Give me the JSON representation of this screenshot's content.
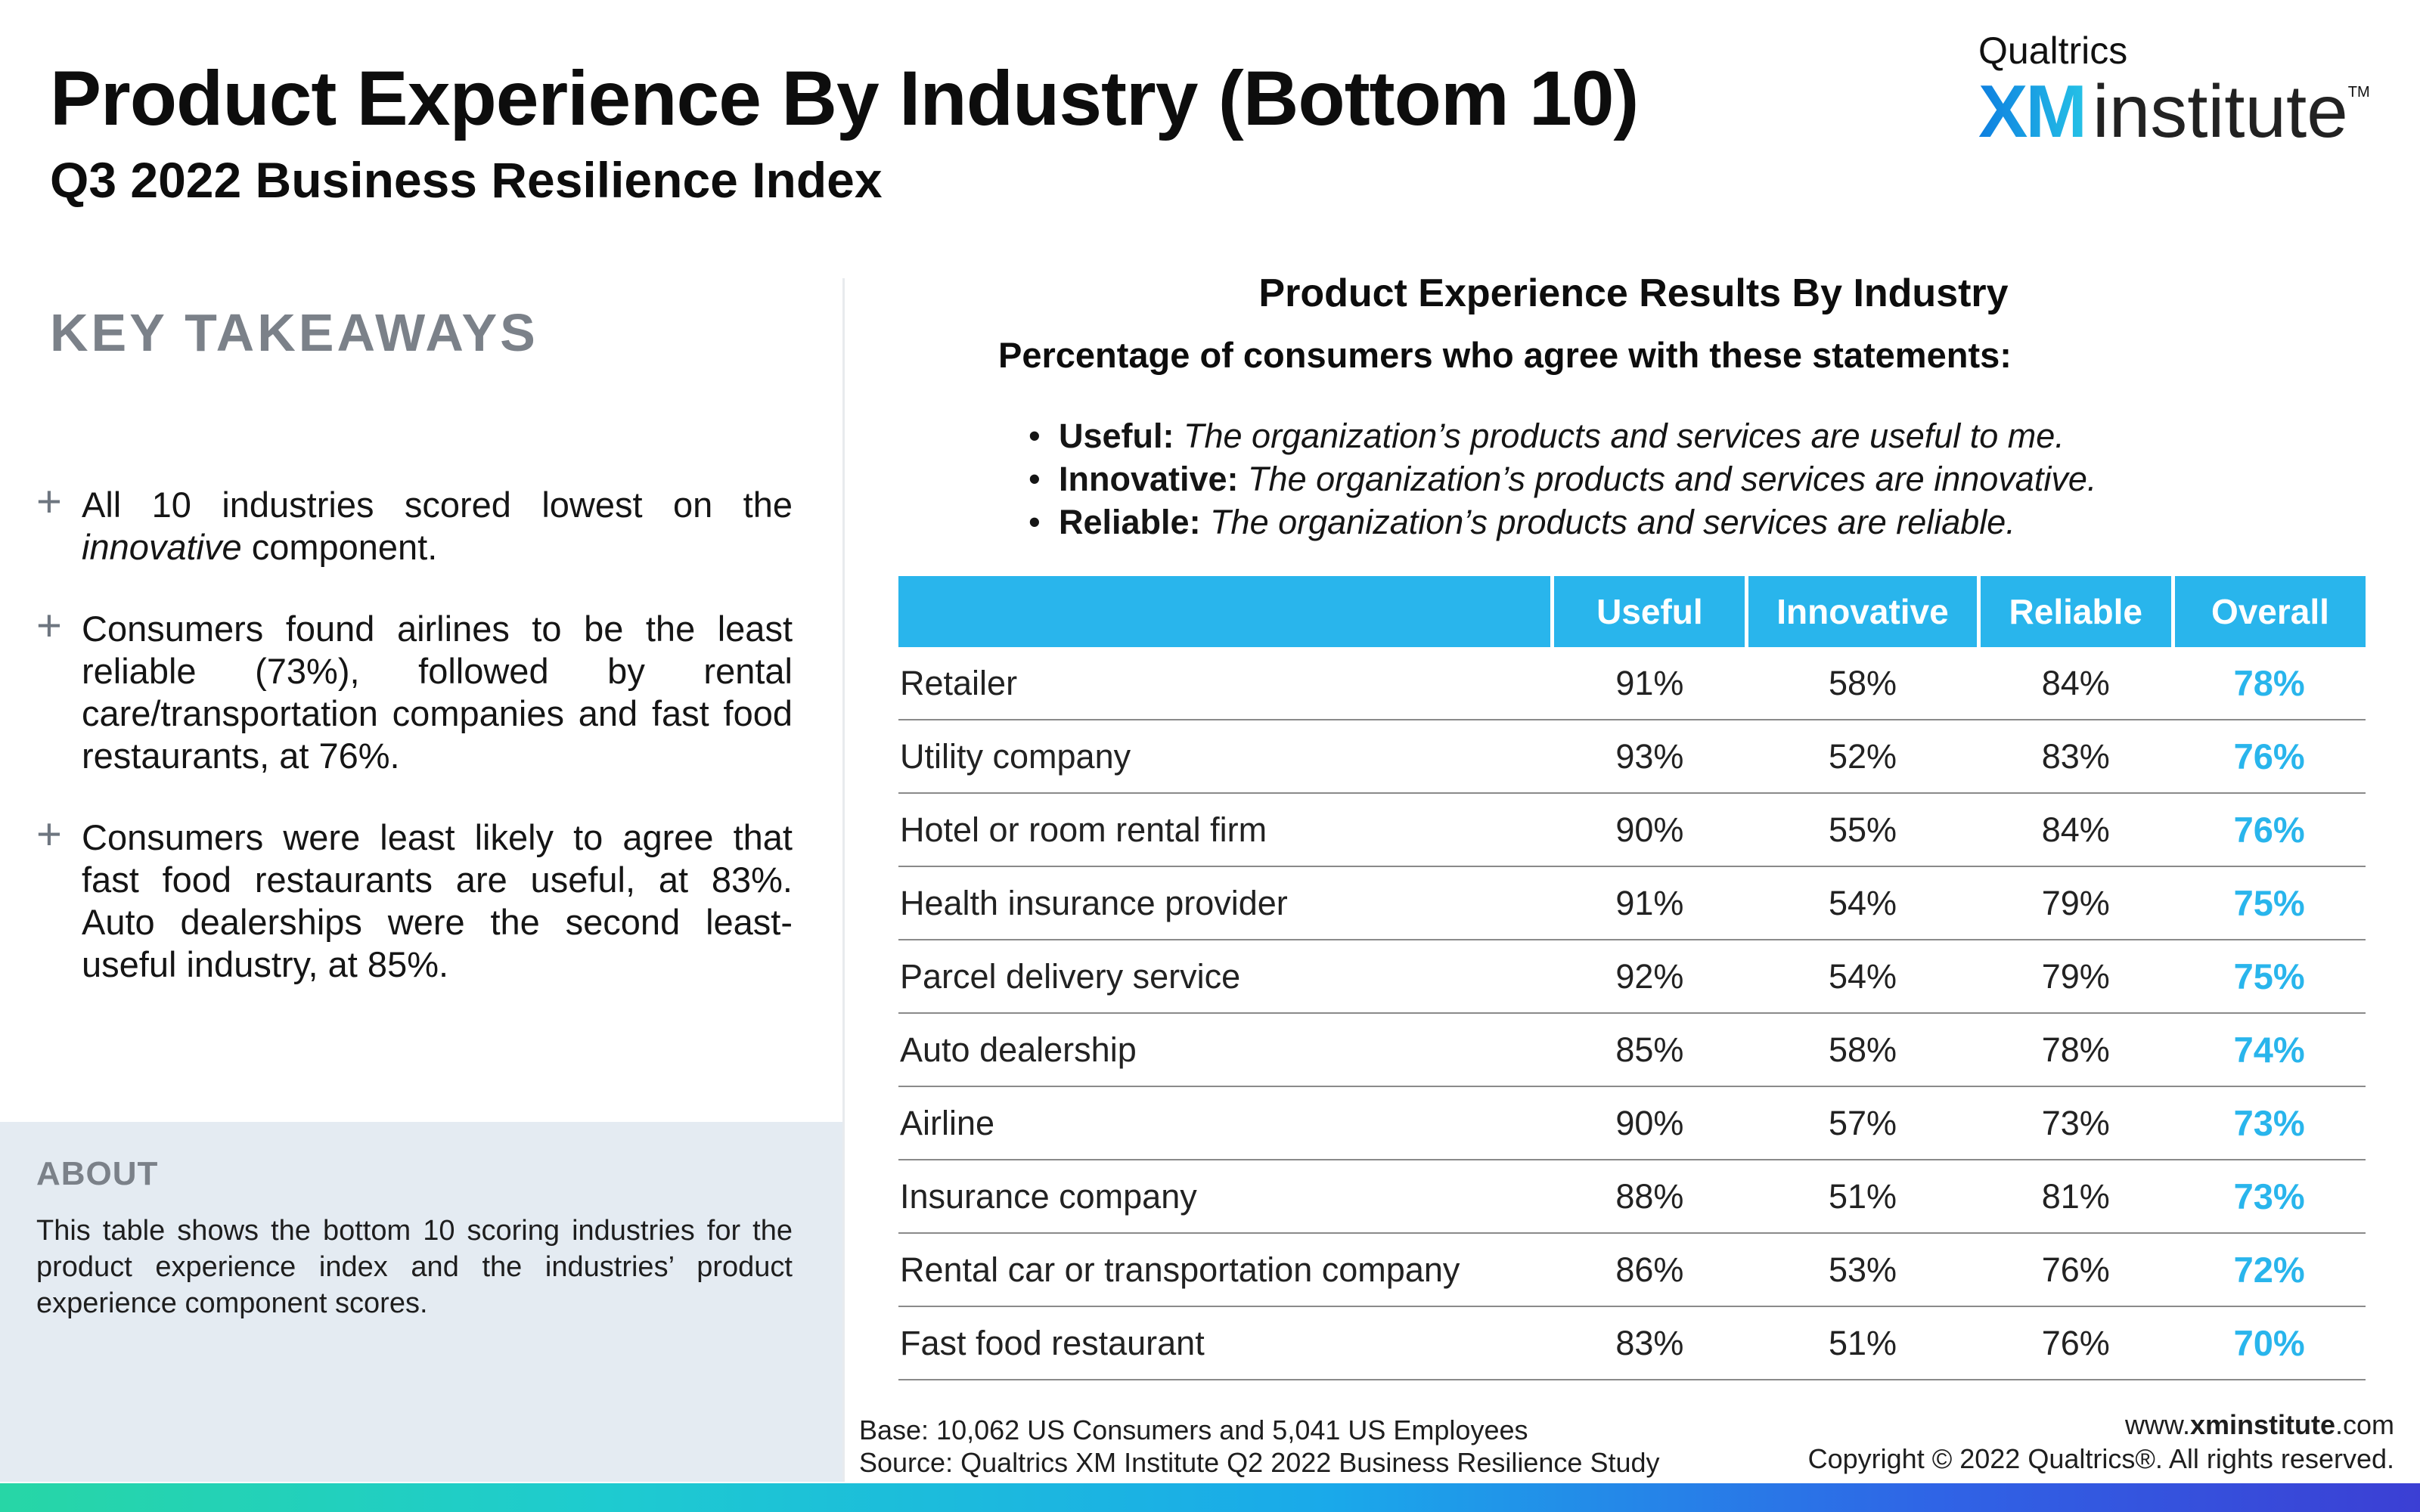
{
  "header": {
    "title": "Product Experience By Industry (Bottom 10)",
    "subtitle": "Q3 2022 Business Resilience Index"
  },
  "logo": {
    "top": "Qualtrics",
    "xm": "XM",
    "institute": "institute",
    "tm": "TM"
  },
  "left": {
    "heading": "KEY TAKEAWAYS",
    "plus_glyph": "+",
    "t1_a": "All 10 industries scored lowest on the ",
    "t1_em": "innovative",
    "t1_b": " component.",
    "t2": "Consumers found airlines to be the least reliable (73%), followed by rental care/transportation companies and fast food restaurants, at 76%.",
    "t3": "Consumers were least likely to agree that fast food restaurants are useful, at 83%. Auto dealerships were the second least-useful industry, at 85%."
  },
  "about": {
    "heading": "ABOUT",
    "text": "This table shows the bottom 10 scoring industries for the product experience index and the industries’ product experience component scores."
  },
  "results": {
    "title": "Product Experience Results By Industry",
    "subtitle": "Percentage of consumers who agree with these statements:",
    "bullet": "•",
    "statements": [
      {
        "label": "Useful:",
        "text": " The organization’s products and services are useful to me."
      },
      {
        "label": "Innovative:",
        "text": " The organization’s products and services are innovative."
      },
      {
        "label": "Reliable:",
        "text": " The organization’s products and services are reliable."
      }
    ]
  },
  "table": {
    "columns": [
      "Useful",
      "Innovative",
      "Reliable",
      "Overall"
    ],
    "rows": [
      {
        "industry": "Retailer",
        "useful": "91%",
        "innovative": "58%",
        "reliable": "84%",
        "overall": "78%"
      },
      {
        "industry": "Utility company",
        "useful": "93%",
        "innovative": "52%",
        "reliable": "83%",
        "overall": "76%"
      },
      {
        "industry": "Hotel or room rental firm",
        "useful": "90%",
        "innovative": "55%",
        "reliable": "84%",
        "overall": "76%"
      },
      {
        "industry": "Health insurance provider",
        "useful": "91%",
        "innovative": "54%",
        "reliable": "79%",
        "overall": "75%"
      },
      {
        "industry": "Parcel delivery service",
        "useful": "92%",
        "innovative": "54%",
        "reliable": "79%",
        "overall": "75%"
      },
      {
        "industry": "Auto dealership",
        "useful": "85%",
        "innovative": "58%",
        "reliable": "78%",
        "overall": "74%"
      },
      {
        "industry": "Airline",
        "useful": "90%",
        "innovative": "57%",
        "reliable": "73%",
        "overall": "73%"
      },
      {
        "industry": "Insurance company",
        "useful": "88%",
        "innovative": "51%",
        "reliable": "81%",
        "overall": "73%"
      },
      {
        "industry": "Rental car or transportation company",
        "useful": "86%",
        "innovative": "53%",
        "reliable": "76%",
        "overall": "72%"
      },
      {
        "industry": "Fast food restaurant",
        "useful": "83%",
        "innovative": "51%",
        "reliable": "76%",
        "overall": "70%"
      }
    ]
  },
  "footer": {
    "base": "Base: 10,062 US Consumers and 5,041 US Employees",
    "source": "Source: Qualtrics XM Institute Q2 2022 Business Resilience Study",
    "url_pre": "www.",
    "url_bold": "xminstitute",
    "url_post": ".com",
    "copyright": "Copyright © 2022 Qualtrics®. All rights reserved."
  },
  "colors": {
    "accent": "#29b5ec",
    "about_bg": "#e4ebf2",
    "heading_gray": "#7b8189"
  }
}
